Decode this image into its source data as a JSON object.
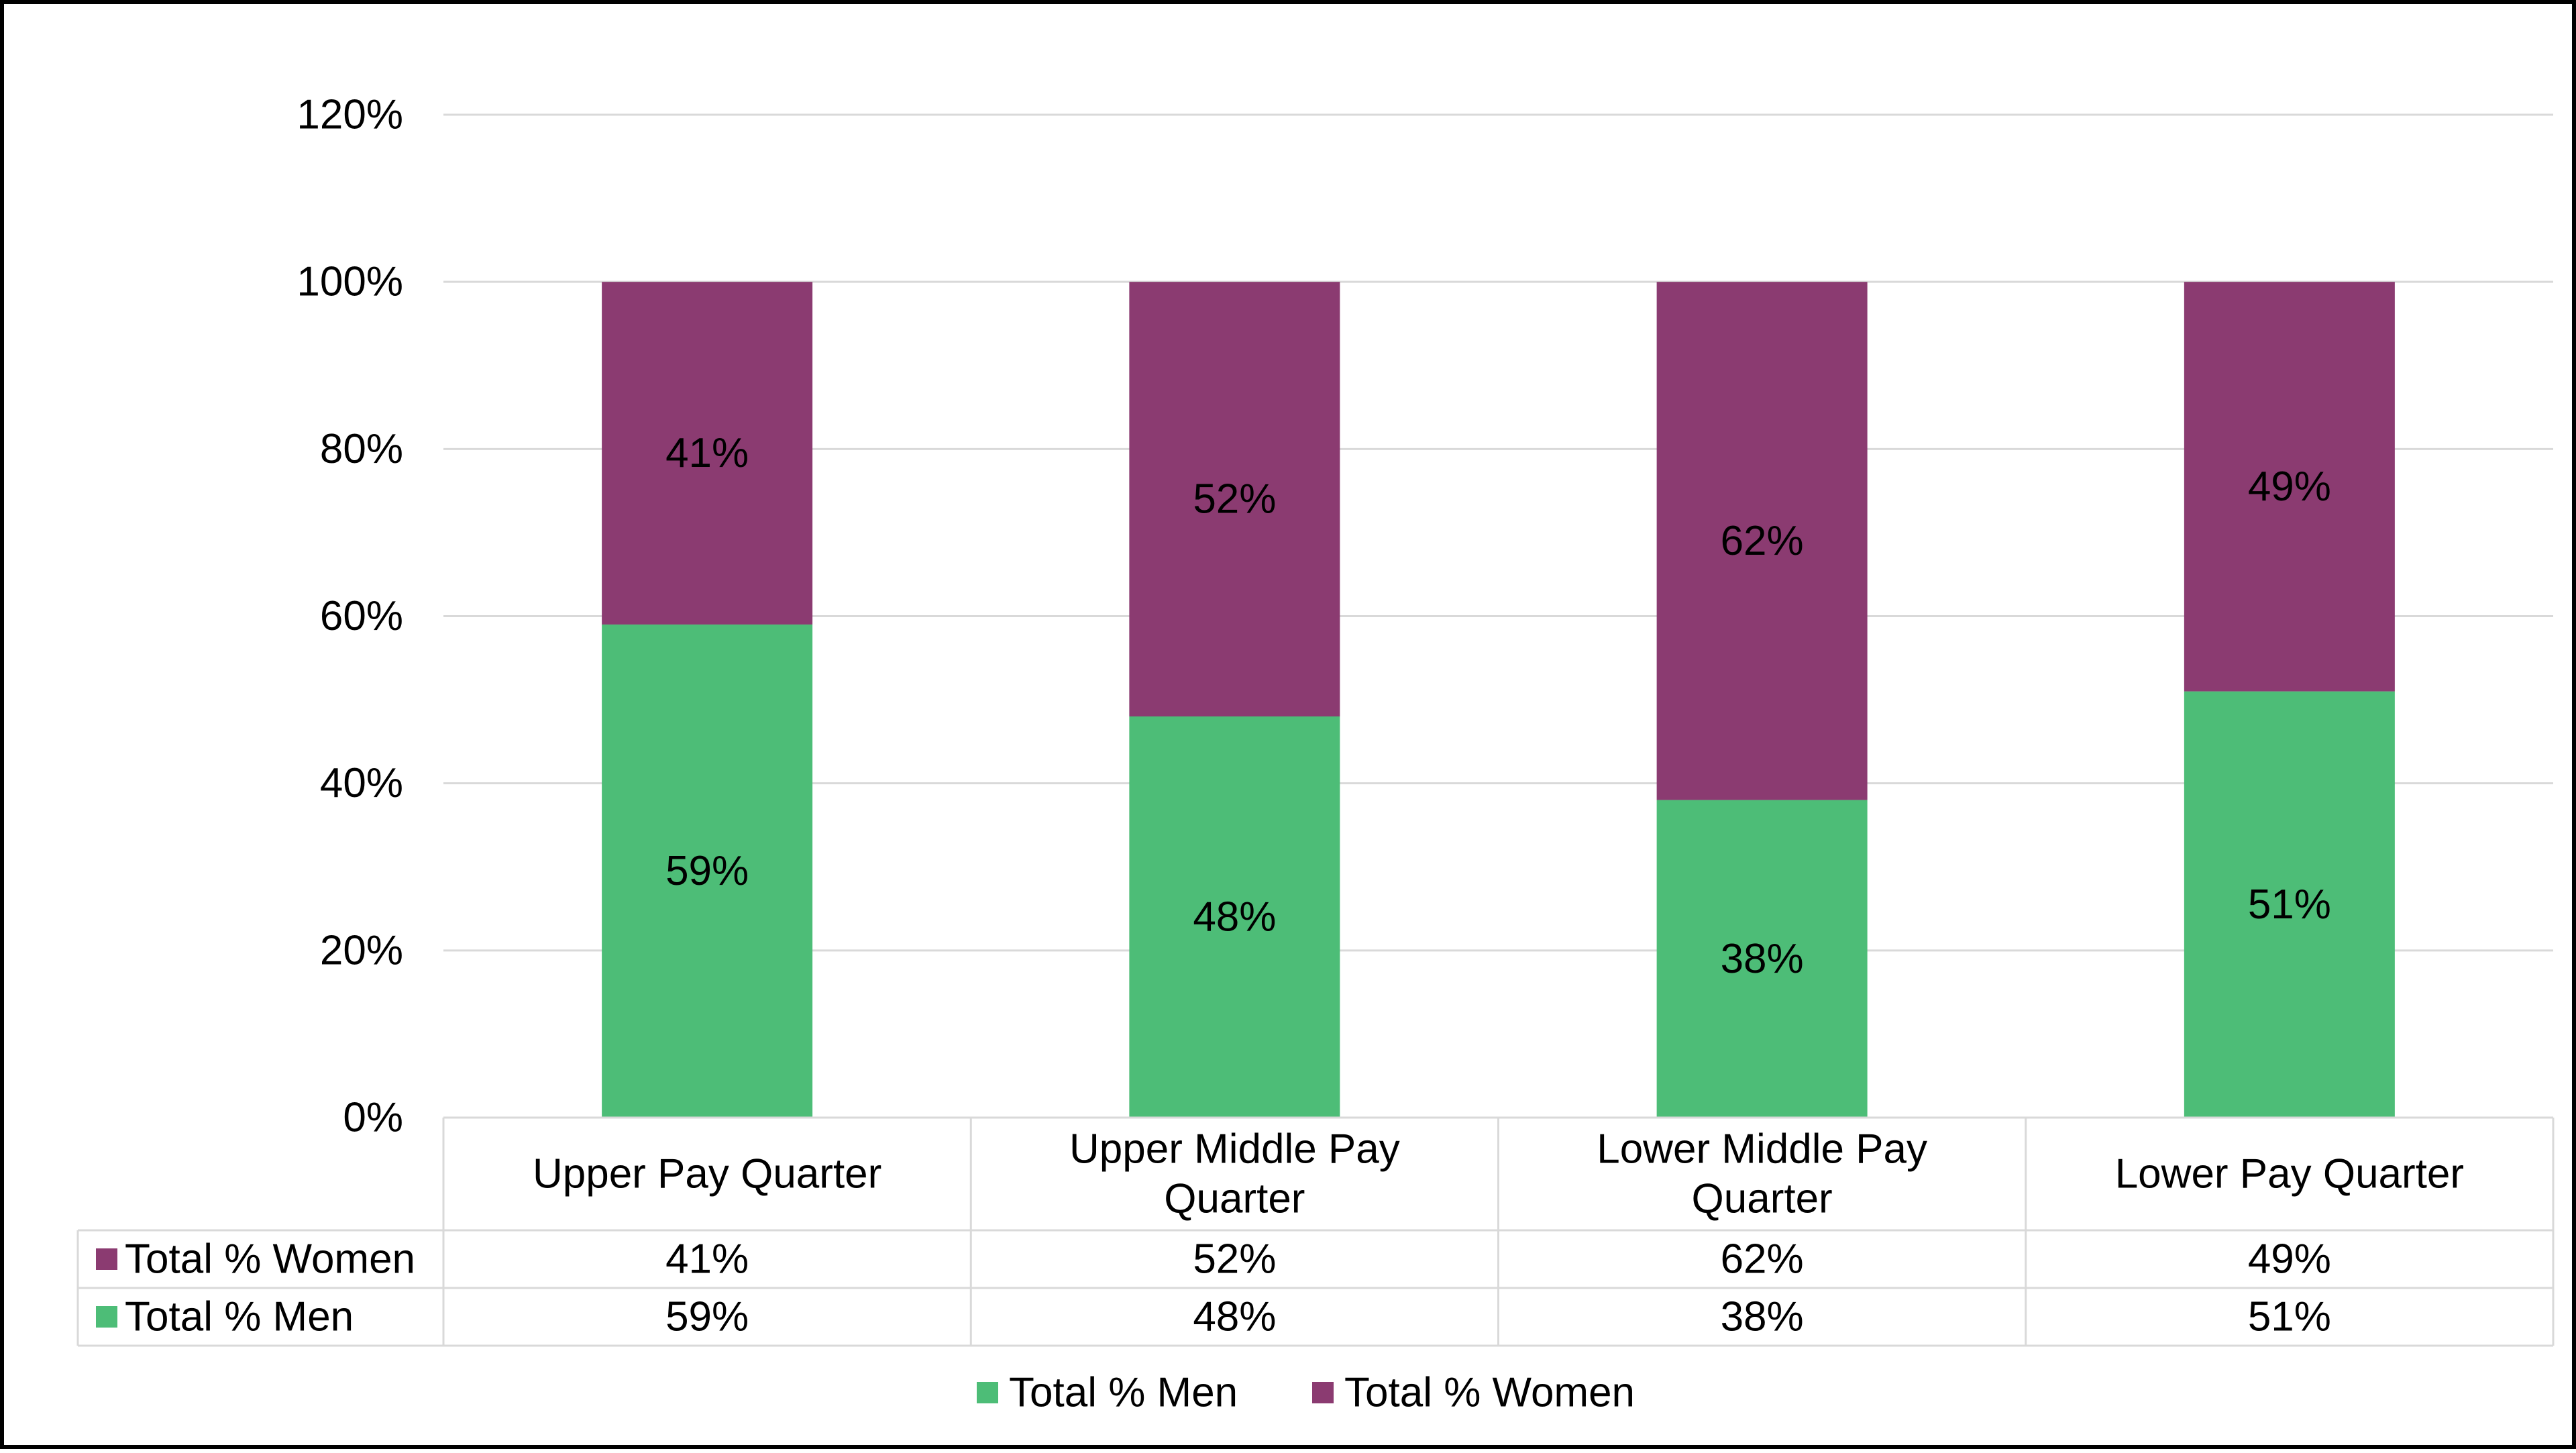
{
  "chart_data": {
    "type": "bar",
    "stacked": true,
    "categories": [
      [
        "Upper Pay Quarter"
      ],
      [
        "Upper Middle Pay",
        "Quarter"
      ],
      [
        "Lower Middle Pay",
        "Quarter"
      ],
      [
        "Lower Pay Quarter"
      ]
    ],
    "series": [
      {
        "name": "Total % Men",
        "color": "#4dbd77",
        "values": [
          59,
          48,
          38,
          51
        ],
        "labels": [
          "59%",
          "48%",
          "38%",
          "51%"
        ]
      },
      {
        "name": "Total % Women",
        "color": "#8b3b71",
        "values": [
          41,
          52,
          62,
          49
        ],
        "labels": [
          "41%",
          "52%",
          "62%",
          "49%"
        ]
      }
    ],
    "table_rows": [
      {
        "name": "Total % Women",
        "color": "#8b3b71",
        "values": [
          "41%",
          "52%",
          "62%",
          "49%"
        ]
      },
      {
        "name": "Total % Men",
        "color": "#4dbd77",
        "values": [
          "59%",
          "48%",
          "38%",
          "51%"
        ]
      }
    ],
    "yticks": [
      {
        "value": 0,
        "label": "0%"
      },
      {
        "value": 20,
        "label": "20%"
      },
      {
        "value": 40,
        "label": "40%"
      },
      {
        "value": 60,
        "label": "60%"
      },
      {
        "value": 80,
        "label": "80%"
      },
      {
        "value": 100,
        "label": "100%"
      },
      {
        "value": 120,
        "label": "120%"
      }
    ],
    "ylim": [
      0,
      120
    ],
    "grid": true,
    "legend_position": "bottom",
    "legend": [
      {
        "name": "Total % Men",
        "color": "#4dbd77"
      },
      {
        "name": "Total % Women",
        "color": "#8b3b71"
      }
    ],
    "title": "",
    "xlabel": "",
    "ylabel": ""
  }
}
